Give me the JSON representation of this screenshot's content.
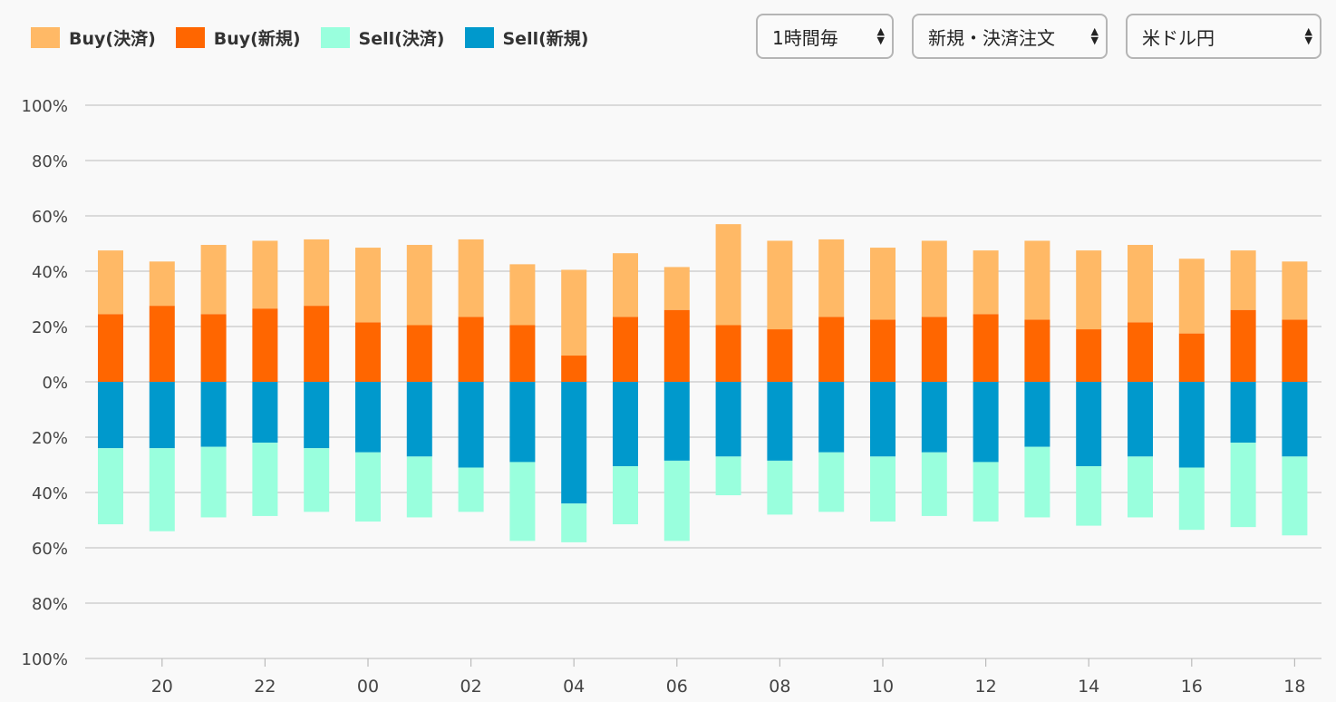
{
  "legend": {
    "items": [
      {
        "label": "Buy(決済)",
        "color": "#ffb966"
      },
      {
        "label": "Buy(新規)",
        "color": "#ff6600"
      },
      {
        "label": "Sell(決済)",
        "color": "#99ffdd"
      },
      {
        "label": "Sell(新規)",
        "color": "#0099cc"
      }
    ]
  },
  "controls": {
    "interval": {
      "value": "1時間毎"
    },
    "order_type": {
      "value": "新規・決済注文"
    },
    "pair": {
      "value": "米ドル円"
    }
  },
  "chart_data": {
    "type": "bar",
    "stacked": true,
    "diverging": true,
    "y_ticks_top": [
      "100%",
      "80%",
      "60%",
      "40%",
      "20%",
      "0%"
    ],
    "y_ticks_bottom": [
      "20%",
      "40%",
      "60%",
      "80%",
      "100%"
    ],
    "ylim": [
      -100,
      100
    ],
    "x_tick_labels": [
      "20",
      "22",
      "00",
      "02",
      "04",
      "06",
      "08",
      "10",
      "12",
      "14",
      "16",
      "18"
    ],
    "x_tick_start_index": 1,
    "x_tick_step": 2,
    "grid": true,
    "legend_position": "top-left",
    "series": [
      {
        "name": "Buy(新規)",
        "color": "#ff6600",
        "side": "buy",
        "values": [
          24.5,
          27.5,
          24.5,
          26.5,
          27.5,
          21.5,
          20.5,
          23.5,
          20.5,
          9.5,
          23.5,
          26,
          20.5,
          19,
          23.5,
          22.5,
          23.5,
          24.5,
          22.5,
          19,
          21.5,
          17.5,
          26,
          22.5
        ]
      },
      {
        "name": "Buy(決済)",
        "color": "#ffb966",
        "side": "buy",
        "values": [
          23,
          16,
          25,
          24.5,
          24,
          27,
          29,
          28,
          22,
          31,
          23,
          15.5,
          36.5,
          32,
          28,
          26,
          27.5,
          23,
          28.5,
          28.5,
          28,
          27,
          21.5,
          21
        ]
      },
      {
        "name": "Sell(新規)",
        "color": "#0099cc",
        "side": "sell",
        "values": [
          24,
          24,
          23.5,
          22,
          24,
          25.5,
          27,
          31,
          29,
          44,
          30.5,
          28.5,
          27,
          28.5,
          25.5,
          27,
          25.5,
          29,
          23.5,
          30.5,
          27,
          31,
          22,
          27
        ]
      },
      {
        "name": "Sell(決済)",
        "color": "#99ffdd",
        "side": "sell",
        "values": [
          27.5,
          30,
          25.5,
          26.5,
          23,
          25,
          22,
          16,
          28.5,
          14,
          21,
          29,
          14,
          19.5,
          21.5,
          23.5,
          23,
          21.5,
          25.5,
          21.5,
          22,
          22.5,
          30.5,
          28.5
        ]
      }
    ]
  }
}
